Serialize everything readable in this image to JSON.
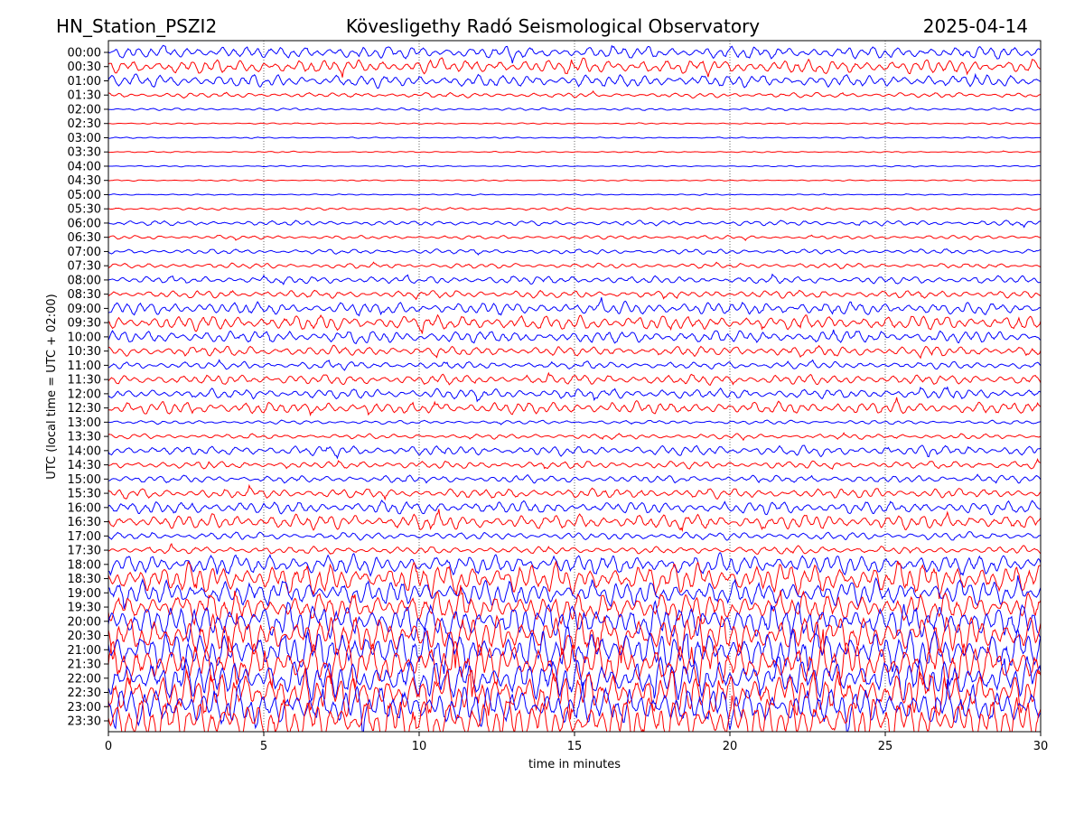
{
  "header": {
    "station": "HN_Station_PSZI2",
    "observatory": "Kövesligethy Radó Seismological Observatory",
    "date": "2025-04-14"
  },
  "chart_data": {
    "type": "line",
    "title": "Kövesligethy Radó Seismological Observatory",
    "xlabel": "time in minutes",
    "ylabel": "UTC (local time = UTC + 02:00)",
    "xlim": [
      0,
      30
    ],
    "x_ticks": [
      "0",
      "5",
      "10",
      "15",
      "20",
      "25",
      "30"
    ],
    "x_tick_values": [
      0,
      5,
      10,
      15,
      20,
      25,
      30
    ],
    "grid": "vertical dotted at x ticks",
    "trace_colors": [
      "#0000ff",
      "#ff0000"
    ],
    "rows": [
      "00:00",
      "00:30",
      "01:00",
      "01:30",
      "02:00",
      "02:30",
      "03:00",
      "03:30",
      "04:00",
      "04:30",
      "05:00",
      "05:30",
      "06:00",
      "06:30",
      "07:00",
      "07:30",
      "08:00",
      "08:30",
      "09:00",
      "09:30",
      "10:00",
      "10:30",
      "11:00",
      "11:30",
      "12:00",
      "12:30",
      "13:00",
      "13:30",
      "14:00",
      "14:30",
      "15:00",
      "15:30",
      "16:00",
      "16:30",
      "17:00",
      "17:30",
      "18:00",
      "18:30",
      "19:00",
      "19:30",
      "20:00",
      "20:30",
      "21:00",
      "21:30",
      "22:00",
      "22:30",
      "23:00",
      "23:30"
    ],
    "relative_amplitude": [
      5,
      6,
      5,
      2,
      1,
      0.5,
      0.5,
      0.5,
      0.5,
      0.5,
      0.5,
      1,
      2,
      1.5,
      2,
      2,
      3,
      3,
      5,
      6,
      5,
      4,
      3,
      4,
      4,
      5,
      1.5,
      2,
      4,
      3,
      3,
      4,
      5,
      6,
      3,
      3,
      8,
      12,
      10,
      12,
      14,
      16,
      16,
      18,
      16,
      18,
      16,
      18
    ]
  }
}
